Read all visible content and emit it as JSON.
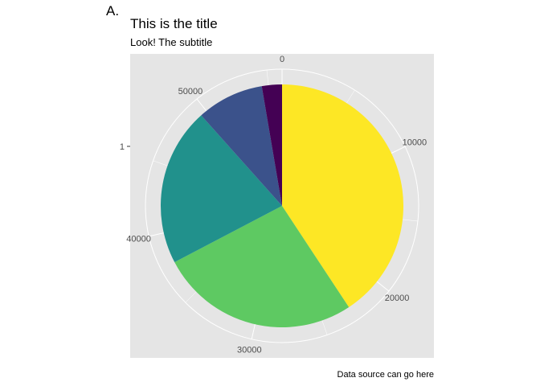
{
  "tag": "A.",
  "chart_data": {
    "type": "pie",
    "title": "This is the title",
    "subtitle": "Look! The subtitle",
    "caption": "Data source can go here",
    "y_axis_tick": "1",
    "theta_range": [
      0,
      56000
    ],
    "theta_ticks": [
      "0",
      "10000",
      "20000",
      "30000",
      "40000",
      "50000"
    ],
    "slices": [
      {
        "value": 22800,
        "color": "#FDE725"
      },
      {
        "value": 14900,
        "color": "#5EC962"
      },
      {
        "value": 11800,
        "color": "#21918C"
      },
      {
        "value": 5000,
        "color": "#3B528B"
      },
      {
        "value": 1500,
        "color": "#440154"
      }
    ],
    "grid": true,
    "legend": "none"
  }
}
